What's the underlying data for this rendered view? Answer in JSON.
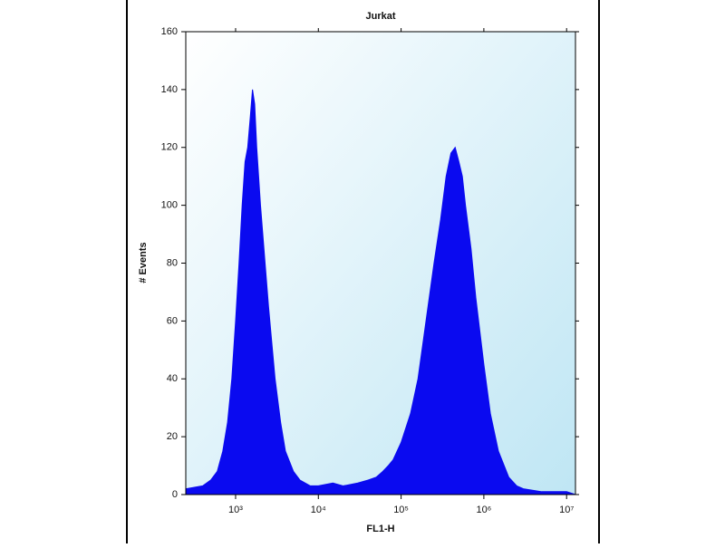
{
  "chart_data": {
    "type": "area",
    "title": "Jurkat",
    "x_label": "FL1-H",
    "y_label": "# Events",
    "xscale": "log",
    "color": "#0a0af0",
    "xlim": [
      250,
      12800000
    ],
    "ylim": [
      0,
      160
    ],
    "xticks": [
      {
        "value": 1000,
        "label": "10³"
      },
      {
        "value": 10000,
        "label": "10⁴"
      },
      {
        "value": 100000,
        "label": "10⁵"
      },
      {
        "value": 1000000,
        "label": "10⁶"
      },
      {
        "value": 10000000,
        "label": "10⁷"
      }
    ],
    "yticks": [
      0,
      20,
      40,
      60,
      80,
      100,
      120,
      140,
      160
    ],
    "x": [
      250,
      400,
      500,
      600,
      700,
      800,
      900,
      1000,
      1100,
      1200,
      1300,
      1400,
      1500,
      1600,
      1700,
      1800,
      2000,
      2200,
      2500,
      3000,
      3500,
      4000,
      5000,
      6000,
      8000,
      10000,
      15000,
      20000,
      30000,
      40000,
      50000,
      60000,
      70000,
      80000,
      100000,
      130000,
      160000,
      200000,
      250000,
      300000,
      350000,
      400000,
      450000,
      500000,
      550000,
      600000,
      700000,
      800000,
      1000000,
      1200000,
      1500000,
      2000000,
      2500000,
      3000000,
      5000000,
      10000000,
      12800000
    ],
    "values": [
      2,
      3,
      5,
      8,
      15,
      25,
      40,
      60,
      80,
      100,
      115,
      120,
      130,
      140,
      135,
      120,
      100,
      85,
      65,
      40,
      25,
      15,
      8,
      5,
      3,
      3,
      4,
      3,
      4,
      5,
      6,
      8,
      10,
      12,
      18,
      28,
      40,
      60,
      80,
      95,
      110,
      118,
      120,
      115,
      110,
      100,
      85,
      68,
      45,
      28,
      15,
      6,
      3,
      2,
      1,
      1,
      0
    ]
  }
}
